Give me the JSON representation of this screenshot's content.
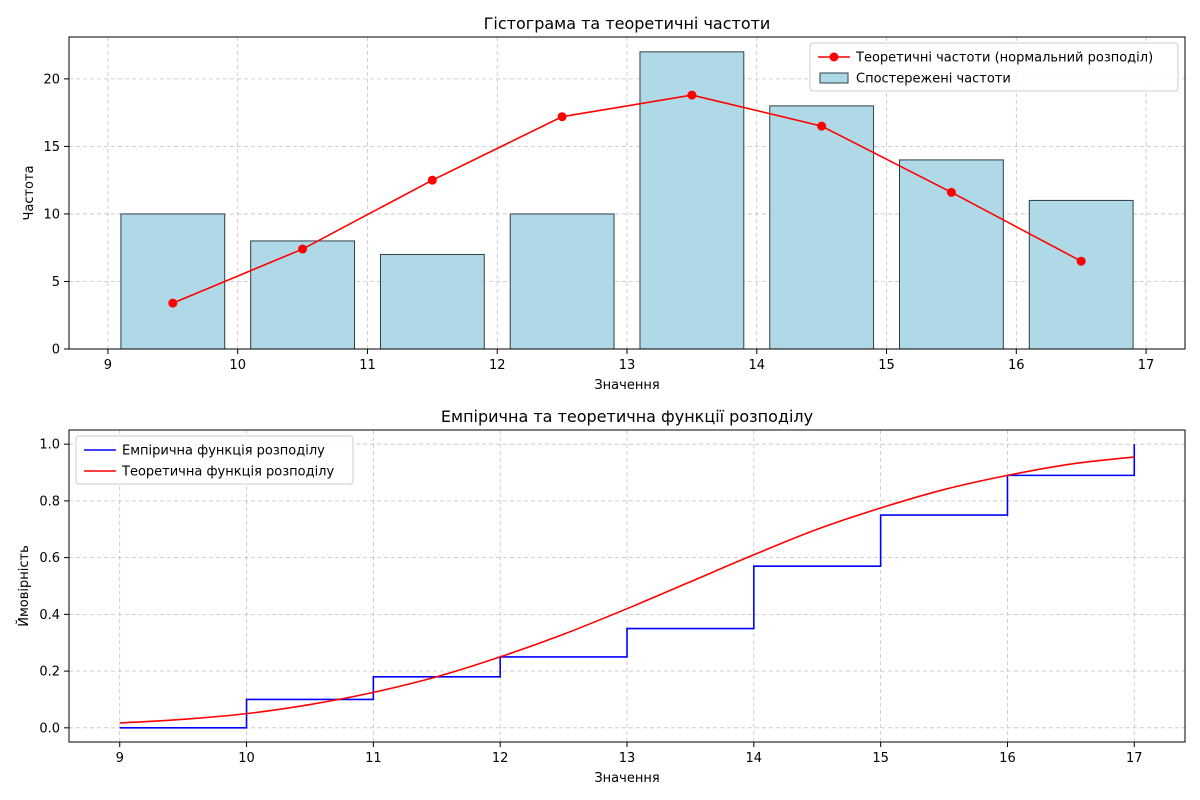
{
  "chart_data": [
    {
      "type": "bar",
      "title": "Гістограма та теоретичні частоти",
      "xlabel": "Значення",
      "ylabel": "Частота",
      "xlim": [
        8.7,
        17.3
      ],
      "ylim": [
        0,
        23.1
      ],
      "xticks": [
        9,
        10,
        11,
        12,
        13,
        14,
        15,
        16,
        17
      ],
      "yticks": [
        0,
        5,
        10,
        15,
        20
      ],
      "grid": true,
      "legend_position": "top-right",
      "bar_edges": [
        9,
        10,
        11,
        12,
        13,
        14,
        15,
        16,
        17
      ],
      "series": [
        {
          "name": "Теоретичні частоти (нормальний розподіл)",
          "kind": "line",
          "color": "#ff0000",
          "x": [
            9.5,
            10.5,
            11.5,
            12.5,
            13.5,
            14.5,
            15.5,
            16.5
          ],
          "values": [
            3.4,
            7.4,
            12.5,
            17.2,
            18.8,
            16.5,
            11.6,
            6.5
          ]
        },
        {
          "name": "Спостережені частоти",
          "kind": "bar",
          "color": "#add8e6",
          "edge_color": "#000000",
          "x": [
            9.5,
            10.5,
            11.5,
            12.5,
            13.5,
            14.5,
            15.5,
            16.5
          ],
          "values": [
            10,
            8,
            7,
            10,
            22,
            18,
            14,
            11
          ]
        }
      ]
    },
    {
      "type": "line",
      "title": "Емпірична та теоретична функції розподілу",
      "xlabel": "Значення",
      "ylabel": "Ймовірність",
      "xlim": [
        8.6,
        17.4
      ],
      "ylim": [
        -0.05,
        1.05
      ],
      "xticks": [
        9,
        10,
        11,
        12,
        13,
        14,
        15,
        16,
        17
      ],
      "yticks": [
        0.0,
        0.2,
        0.4,
        0.6,
        0.8,
        1.0
      ],
      "grid": true,
      "legend_position": "top-left",
      "series": [
        {
          "name": "Емпірична функція розподілу",
          "kind": "step",
          "color": "#0000ff",
          "x": [
            9,
            10,
            11,
            12,
            13,
            14,
            15,
            16,
            17
          ],
          "values": [
            0.0,
            0.1,
            0.18,
            0.25,
            0.35,
            0.57,
            0.75,
            0.89,
            1.0
          ]
        },
        {
          "name": "Теоретична функція розподілу",
          "kind": "curve",
          "color": "#ff0000",
          "x": [
            9,
            9.5,
            10,
            10.5,
            11,
            11.5,
            12,
            12.5,
            13,
            13.5,
            14,
            14.5,
            15,
            15.5,
            16,
            16.5,
            17
          ],
          "values": [
            0.017,
            0.03,
            0.05,
            0.082,
            0.125,
            0.18,
            0.25,
            0.33,
            0.42,
            0.515,
            0.61,
            0.7,
            0.775,
            0.84,
            0.89,
            0.93,
            0.955
          ]
        }
      ]
    }
  ]
}
